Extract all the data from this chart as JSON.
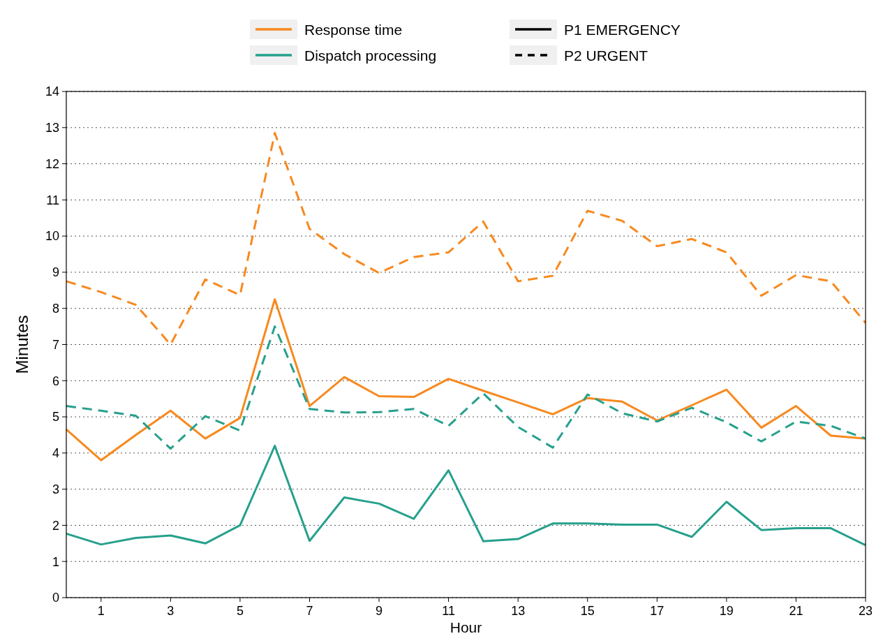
{
  "chart_data": {
    "type": "line",
    "xlabel": "Hour",
    "ylabel": "Minutes",
    "x": [
      0,
      1,
      2,
      3,
      4,
      5,
      6,
      7,
      8,
      9,
      10,
      11,
      12,
      13,
      14,
      15,
      16,
      17,
      18,
      19,
      20,
      21,
      22,
      23
    ],
    "series": [
      {
        "name": "Response time",
        "color": "#f7891f",
        "line_style": "solid",
        "values": [
          4.65,
          3.8,
          4.5,
          5.17,
          4.4,
          4.97,
          8.25,
          5.3,
          6.1,
          5.57,
          5.55,
          6.05,
          5.72,
          5.4,
          5.07,
          5.52,
          5.42,
          4.9,
          5.32,
          5.75,
          4.7,
          5.3,
          4.48,
          4.4
        ]
      },
      {
        "color": "#f7891f",
        "line_style": "dashed",
        "values": [
          8.75,
          8.45,
          8.1,
          7.0,
          8.8,
          8.37,
          12.85,
          10.2,
          9.5,
          8.98,
          9.42,
          9.55,
          10.4,
          8.75,
          8.9,
          10.7,
          10.42,
          9.72,
          9.92,
          9.55,
          8.35,
          8.92,
          8.75,
          7.6
        ]
      },
      {
        "name": "Dispatch processing",
        "color": "#26a08c",
        "line_style": "solid",
        "values": [
          1.77,
          1.47,
          1.65,
          1.72,
          1.5,
          2.0,
          4.2,
          1.57,
          2.77,
          2.6,
          2.18,
          3.52,
          1.56,
          1.62,
          2.05,
          2.05,
          2.02,
          2.02,
          1.68,
          2.65,
          1.87,
          1.92,
          1.92,
          1.45
        ]
      },
      {
        "color": "#26a08c",
        "line_style": "dashed",
        "values": [
          5.3,
          5.17,
          5.03,
          4.12,
          5.02,
          4.62,
          7.5,
          5.22,
          5.12,
          5.13,
          5.22,
          4.75,
          5.65,
          4.72,
          4.15,
          5.62,
          5.1,
          4.87,
          5.25,
          4.85,
          4.32,
          4.87,
          4.75,
          4.4
        ]
      }
    ],
    "annotations": [
      "P1 EMERGENCY",
      "P2 URGENT"
    ],
    "xlim": [
      0,
      23
    ],
    "xticks": [
      1,
      3,
      5,
      7,
      9,
      11,
      13,
      15,
      17,
      19,
      21,
      23
    ],
    "ylim": [
      0,
      14
    ],
    "yticks": [
      0,
      1,
      2,
      3,
      4,
      5,
      6,
      7,
      8,
      9,
      10,
      11,
      12,
      13,
      14
    ],
    "grid": "y",
    "legend": "top",
    "marker": "none"
  }
}
